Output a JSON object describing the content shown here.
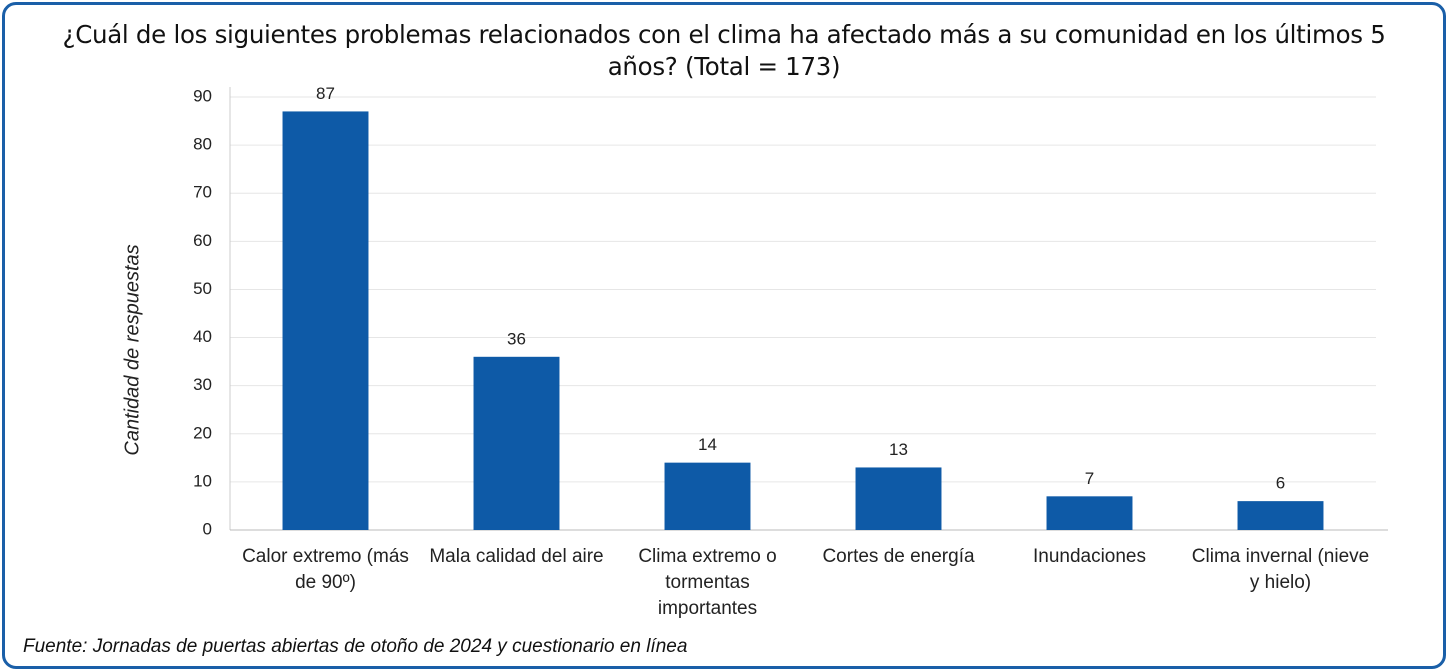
{
  "chart_data": {
    "type": "bar",
    "title": "¿Cuál de los siguientes problemas relacionados con el clima ha afectado más a su comunidad en los últimos 5 años? (Total = 173)",
    "y_label": "Cantidad de respuestas",
    "source": "Fuente: Jornadas de puertas abiertas de otoño de 2024 y cuestionario en línea",
    "categories": [
      "Calor extremo (más de 90º)",
      "Mala calidad del aire",
      "Clima extremo o tormentas importantes",
      "Cortes de energía",
      "Inundaciones",
      "Clima invernal (nieve y hielo)"
    ],
    "values": [
      87,
      36,
      14,
      13,
      7,
      6
    ],
    "color": "#0e5aa7",
    "ylim": [
      0,
      90
    ],
    "yticks": [
      0,
      10,
      20,
      30,
      40,
      50,
      60,
      70,
      80,
      90
    ],
    "grid": true
  }
}
